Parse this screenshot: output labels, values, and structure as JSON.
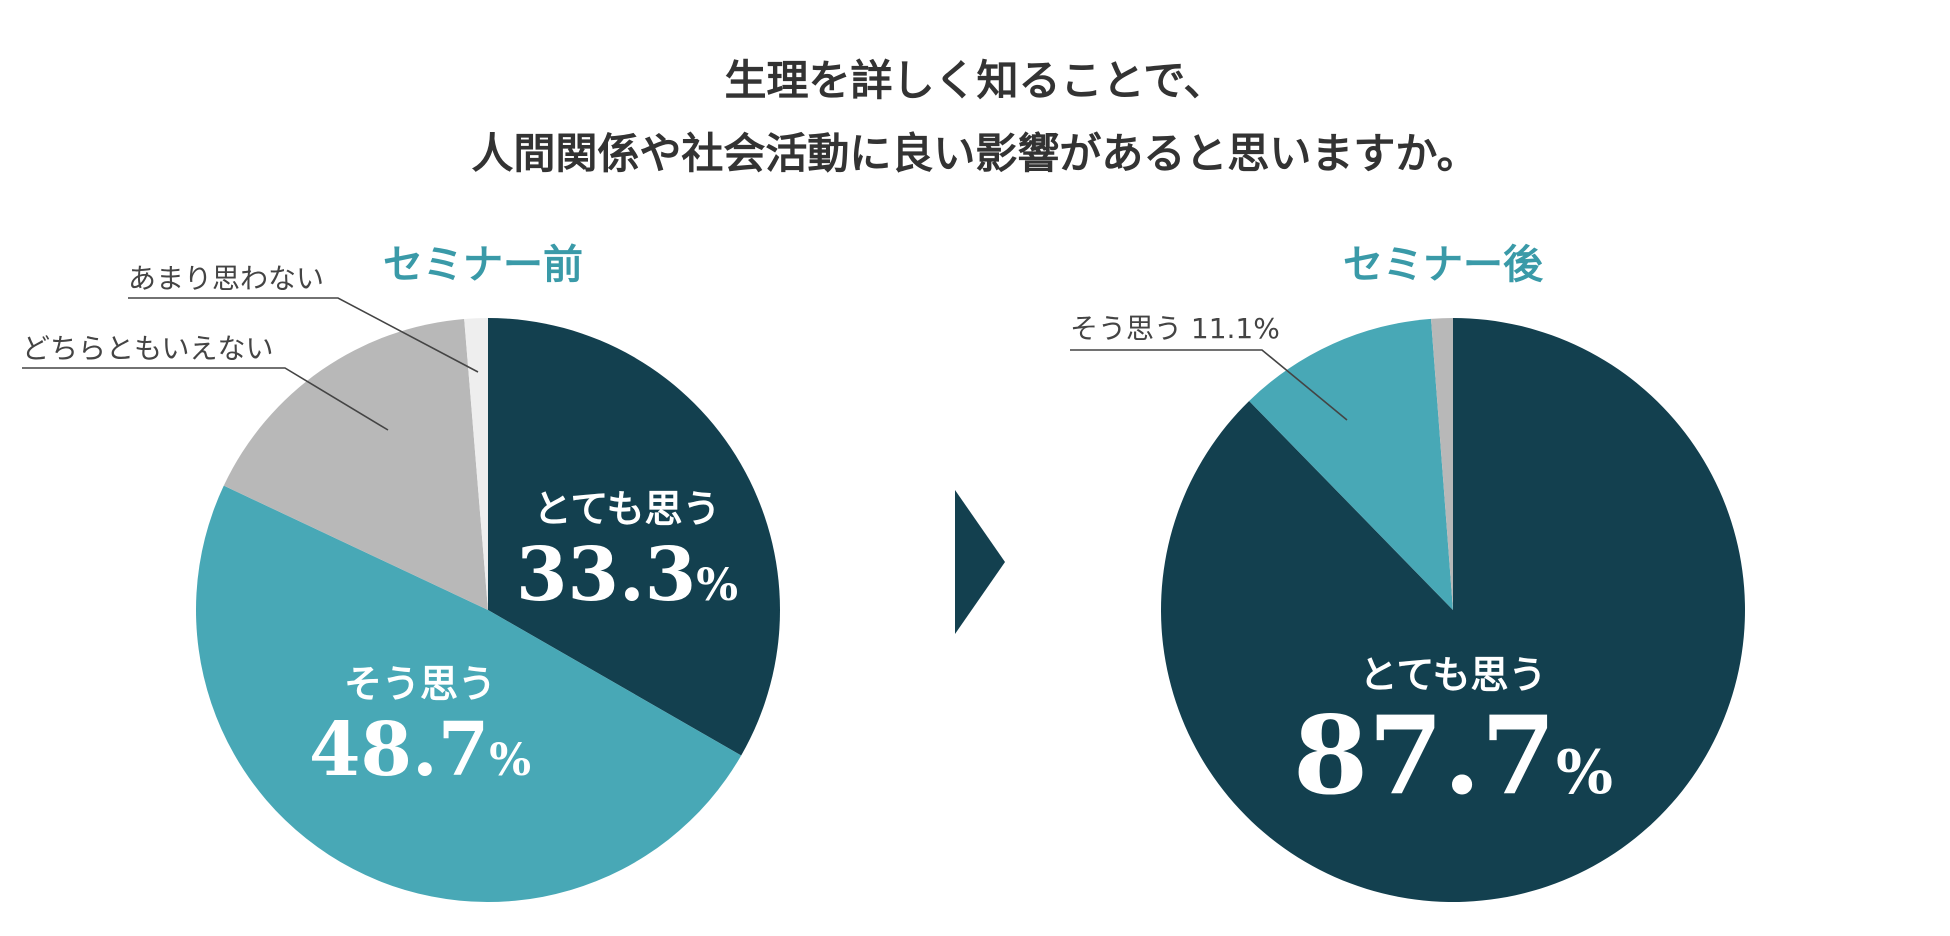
{
  "title": {
    "line1": "生理を詳しく知ることで、",
    "line2": "人間関係や社会活動に良い影響があると思いますか。"
  },
  "colors": {
    "dark": "#13404f",
    "teal": "#48a8b6",
    "gray": "#b8b8b8",
    "light": "#eeeeee",
    "subtitle": "#3a9aa8",
    "text": "#333333"
  },
  "chart_data": [
    {
      "type": "pie",
      "title": "セミナー前",
      "slices": [
        {
          "label": "とても思う",
          "value": 33.3,
          "display": "33.3",
          "unit": "%",
          "color": "#13404f"
        },
        {
          "label": "そう思う",
          "value": 48.7,
          "display": "48.7",
          "unit": "%",
          "color": "#48a8b6"
        },
        {
          "label": "どちらともいえない",
          "value": 16.7,
          "color": "#b8b8b8"
        },
        {
          "label": "あまり思わない",
          "value": 1.3,
          "color": "#eeeeee"
        }
      ]
    },
    {
      "type": "pie",
      "title": "セミナー後",
      "slices": [
        {
          "label": "とても思う",
          "value": 87.7,
          "display": "87.7",
          "unit": "%",
          "color": "#13404f"
        },
        {
          "label": "そう思う",
          "value": 11.1,
          "display": "11.1",
          "unit": "%",
          "color": "#48a8b6"
        },
        {
          "label": "",
          "value": 1.2,
          "color": "#b8b8b8"
        }
      ]
    }
  ],
  "callouts": {
    "before_yaya": "あまり思わない",
    "before_neutral": "どちらともいえない",
    "after_agree": "そう思う 11.1%"
  }
}
